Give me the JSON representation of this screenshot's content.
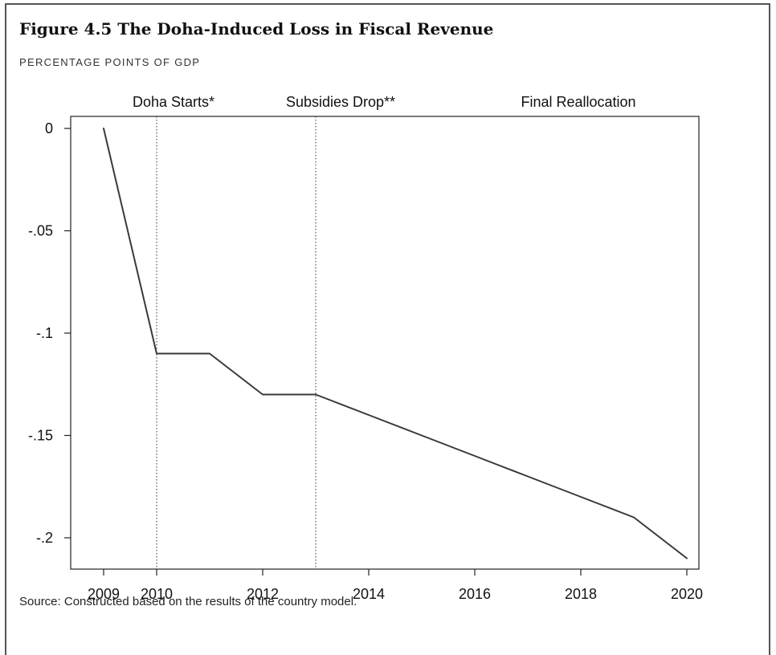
{
  "figure": {
    "title": "Figure 4.5 The Doha-Induced Loss in Fiscal Revenue",
    "subtitle": "PERCENTAGE POINTS OF GDP",
    "source": "Source: Constructed based on the results of the country model."
  },
  "chart_data": {
    "type": "line",
    "x": [
      2009,
      2010,
      2011,
      2012,
      2013,
      2014,
      2015,
      2016,
      2017,
      2018,
      2019,
      2020
    ],
    "series": [
      {
        "values": [
          0,
          -0.11,
          -0.11,
          -0.13,
          -0.13,
          -0.14,
          -0.15,
          -0.16,
          -0.17,
          -0.18,
          -0.19,
          -0.21
        ]
      }
    ],
    "xlim": [
      2009,
      2020
    ],
    "ylim": [
      -0.21,
      0
    ],
    "x_ticks": [
      2009,
      2010,
      2012,
      2014,
      2016,
      2018,
      2020
    ],
    "x_tick_labels": [
      "2009",
      "2010",
      "2012",
      "2014",
      "2016",
      "2018",
      "2020"
    ],
    "y_ticks": [
      0,
      -0.05,
      -0.1,
      -0.15,
      -0.2
    ],
    "y_tick_labels": [
      "0",
      "-.05",
      "-.1",
      "-.15",
      "-.2"
    ],
    "vertical_markers": [
      2010,
      2013
    ],
    "phase_labels": [
      {
        "text": "Doha Starts*",
        "x": 2010
      },
      {
        "text": "Subsidies Drop**",
        "x": 2013
      },
      {
        "text": "Final Reallocation",
        "x": 2017
      }
    ],
    "grid": false,
    "line_color": "#3a3a3a"
  }
}
